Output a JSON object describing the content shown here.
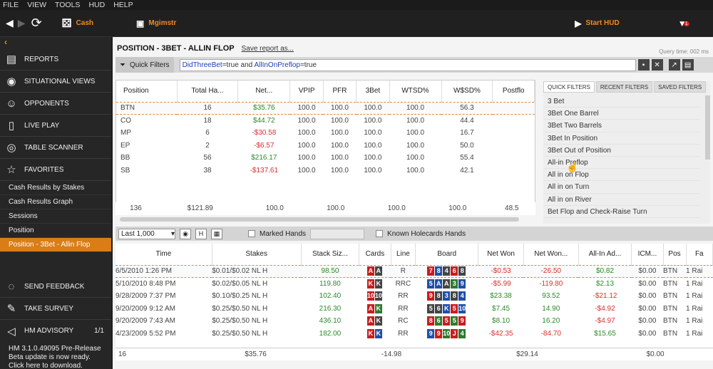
{
  "menu": [
    "FILE",
    "VIEW",
    "TOOLS",
    "HUD",
    "HELP"
  ],
  "toolbar": {
    "cash": "Cash",
    "mgmt": "Mgimstr",
    "start_hud": "Start HUD",
    "notif": "1"
  },
  "sidebar": {
    "items": [
      {
        "icon": "reports-icon",
        "label": "REPORTS"
      },
      {
        "icon": "eye-icon",
        "label": "SITUATIONAL VIEWS"
      },
      {
        "icon": "opponents-icon",
        "label": "OPPONENTS"
      },
      {
        "icon": "live-play-icon",
        "label": "LIVE PLAY"
      },
      {
        "icon": "table-scanner-icon",
        "label": "TABLE SCANNER"
      },
      {
        "icon": "star-icon",
        "label": "FAVORITES"
      }
    ],
    "favorites": [
      "Cash Results by Stakes",
      "Cash Results Graph",
      "Sessions",
      "Position",
      "Position - 3Bet - Allin Flop"
    ],
    "bottom": [
      {
        "icon": "feedback-icon",
        "label": "SEND FEEDBACK"
      },
      {
        "icon": "survey-icon",
        "label": "TAKE SURVEY"
      }
    ],
    "advisory": {
      "label": "HM ADVISORY",
      "count": "1/1",
      "message": "HM 3.1.0.49095 Pre-Release Beta update is now ready.  Click here to download."
    }
  },
  "report": {
    "title": "POSITION - 3BET - ALLIN FLOP",
    "save": "Save report as...",
    "query_time": "Query time: 002 ms"
  },
  "quick_filters": {
    "label": "Quick Filters",
    "query": [
      "DidThreeBet",
      "=true and ",
      "AllInOnPreflop",
      "=true"
    ]
  },
  "upper": {
    "headers": [
      "Position",
      "Total Ha...",
      "Net...",
      "VPIP",
      "PFR",
      "3Bet",
      "WTSD%",
      "W$SD%",
      "Postflo"
    ],
    "rows": [
      [
        "BTN",
        "16",
        "$35.76",
        "100.0",
        "100.0",
        "100.0",
        "100.0",
        "56.3"
      ],
      [
        "CO",
        "18",
        "$44.72",
        "100.0",
        "100.0",
        "100.0",
        "100.0",
        "44.4"
      ],
      [
        "MP",
        "6",
        "-$30.58",
        "100.0",
        "100.0",
        "100.0",
        "100.0",
        "16.7"
      ],
      [
        "EP",
        "2",
        "-$6.57",
        "100.0",
        "100.0",
        "100.0",
        "100.0",
        "50.0"
      ],
      [
        "BB",
        "56",
        "$216.17",
        "100.0",
        "100.0",
        "100.0",
        "100.0",
        "55.4"
      ],
      [
        "SB",
        "38",
        "-$137.61",
        "100.0",
        "100.0",
        "100.0",
        "100.0",
        "42.1"
      ]
    ],
    "total": [
      "",
      "136",
      "$121.89",
      "100.0",
      "100.0",
      "100.0",
      "100.0",
      "48.5"
    ]
  },
  "filters_panel": {
    "tabs": [
      "QUICK FILTERS",
      "RECENT FILTERS",
      "SAVED FILTERS"
    ],
    "items": [
      "3 Bet",
      "3Bet One Barrel",
      "3Bet Two Barrels",
      "3Bet In Position",
      "3Bet Out of Position",
      "All-in Preflop",
      "All in on Flop",
      "All in on Turn",
      "All in on River",
      "Bet Flop and Check-Raise Turn"
    ]
  },
  "lower_bar": {
    "select": "Last 1,000",
    "h": "H",
    "marked": "Marked Hands",
    "known": "Known Holecards Hands"
  },
  "lower": {
    "headers": [
      "Time",
      "Stakes",
      "Stack Siz...",
      "Cards",
      "Line",
      "Board",
      "Net Won",
      "Net Won...",
      "All-In Ad...",
      "ICM...",
      "Pos",
      "Fa"
    ],
    "rows": [
      {
        "time": "6/5/2010 1:26 PM",
        "stakes": "$0.01/$0.02 NL H",
        "stack": "98.50",
        "cards": [
          [
            "A",
            "r"
          ],
          [
            "A",
            "k"
          ]
        ],
        "line": "R",
        "board": [
          [
            "7",
            "r"
          ],
          [
            "8",
            "b"
          ],
          [
            "4",
            "k"
          ],
          [
            "6",
            "r"
          ],
          [
            "8",
            "k"
          ]
        ],
        "net": "-$0.53",
        "netbb": "-26.50",
        "allin": "$0.82",
        "icm": "$0.00",
        "pos": "BTN",
        "fa": "1 Rai"
      },
      {
        "time": "5/10/2010 8:48 PM",
        "stakes": "$0.02/$0.05 NL H",
        "stack": "119.80",
        "cards": [
          [
            "K",
            "r"
          ],
          [
            "K",
            "k"
          ]
        ],
        "line": "RRC",
        "board": [
          [
            "5",
            "b"
          ],
          [
            "A",
            "b"
          ],
          [
            "A",
            "k"
          ],
          [
            "3",
            "g"
          ],
          [
            "9",
            "b"
          ]
        ],
        "net": "-$5.99",
        "netbb": "-119.80",
        "allin": "$2.13",
        "icm": "$0.00",
        "pos": "BTN",
        "fa": "1 Rai"
      },
      {
        "time": "9/28/2009 7:37 PM",
        "stakes": "$0.10/$0.25 NL H",
        "stack": "102.40",
        "cards": [
          [
            "10",
            "r"
          ],
          [
            "10",
            "k"
          ]
        ],
        "line": "RR",
        "board": [
          [
            "9",
            "r"
          ],
          [
            "8",
            "k"
          ],
          [
            "3",
            "b"
          ],
          [
            "8",
            "k"
          ],
          [
            "4",
            "b"
          ]
        ],
        "net": "$23.38",
        "netbb": "93.52",
        "allin": "-$21.12",
        "icm": "$0.00",
        "pos": "BTN",
        "fa": "1 Rai"
      },
      {
        "time": "9/20/2009 9:12 AM",
        "stakes": "$0.25/$0.50 NL H",
        "stack": "216.30",
        "cards": [
          [
            "A",
            "r"
          ],
          [
            "K",
            "g"
          ]
        ],
        "line": "RR",
        "board": [
          [
            "5",
            "k"
          ],
          [
            "6",
            "k"
          ],
          [
            "K",
            "b"
          ],
          [
            "5",
            "r"
          ],
          [
            "10",
            "b"
          ]
        ],
        "net": "$7.45",
        "netbb": "14.90",
        "allin": "-$4.92",
        "icm": "$0.00",
        "pos": "BTN",
        "fa": "1 Rai"
      },
      {
        "time": "9/20/2009 7:43 AM",
        "stakes": "$0.25/$0.50 NL H",
        "stack": "436.10",
        "cards": [
          [
            "A",
            "r"
          ],
          [
            "K",
            "k"
          ]
        ],
        "line": "RC",
        "board": [
          [
            "8",
            "r"
          ],
          [
            "6",
            "g"
          ],
          [
            "5",
            "r"
          ],
          [
            "5",
            "g"
          ],
          [
            "9",
            "r"
          ]
        ],
        "net": "$8.10",
        "netbb": "16.20",
        "allin": "-$4.97",
        "icm": "$0.00",
        "pos": "BTN",
        "fa": "1 Rai"
      },
      {
        "time": "4/23/2009 5:52 PM",
        "stakes": "$0.25/$0.50 NL H",
        "stack": "182.00",
        "cards": [
          [
            "K",
            "r"
          ],
          [
            "K",
            "b"
          ]
        ],
        "line": "RR",
        "board": [
          [
            "9",
            "b"
          ],
          [
            "9",
            "r"
          ],
          [
            "10",
            "g"
          ],
          [
            "J",
            "r"
          ],
          [
            "4",
            "g"
          ]
        ],
        "net": "-$42.35",
        "netbb": "-84.70",
        "allin": "$15.65",
        "icm": "$0.00",
        "pos": "BTN",
        "fa": "1 Rai"
      }
    ],
    "total": {
      "count": "16",
      "net": "$35.76",
      "netbb": "-14.98",
      "allin": "$29.14",
      "icm": "$0.00"
    }
  }
}
